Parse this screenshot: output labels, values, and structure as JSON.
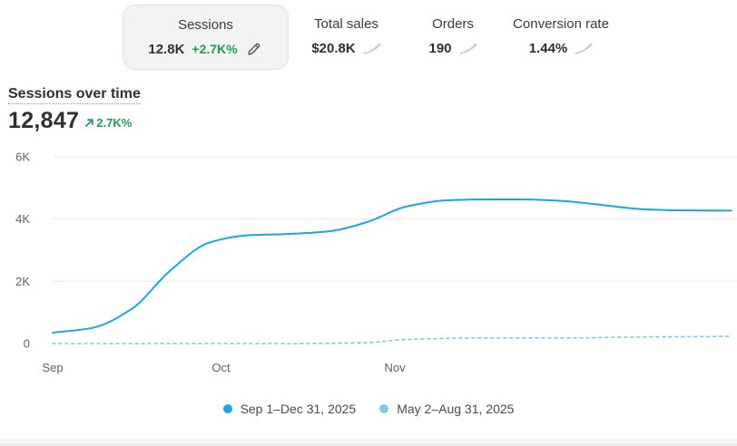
{
  "metrics": [
    {
      "title": "Sessions",
      "value": "12.8K",
      "delta": "+2.7K%",
      "selected": true,
      "icon": "pencil-icon"
    },
    {
      "title": "Total sales",
      "value": "$20.8K",
      "icon": "sparkline-icon"
    },
    {
      "title": "Orders",
      "value": "190",
      "icon": "sparkline-icon"
    },
    {
      "title": "Conversion rate",
      "value": "1.44%",
      "icon": "sparkline-icon"
    }
  ],
  "chart_header": {
    "title": "Sessions over time",
    "total": "12,847",
    "delta": "2.7K%",
    "delta_icon": "arrow-up-right-icon"
  },
  "legend": [
    {
      "label": "Sep 1–Dec 31, 2025",
      "color": "#1aa7e0",
      "style": "solid"
    },
    {
      "label": "May 2–Aug 31, 2025",
      "color": "#7fc8ea",
      "style": "dotted"
    }
  ],
  "colors": {
    "primary_series": "#1aa7e0",
    "comparison_series": "#7fc8ea",
    "positive": "#1e9b57",
    "gridline": "#ebebeb"
  },
  "chart_data": {
    "type": "line",
    "title": "Sessions over time",
    "xlabel": "",
    "ylabel": "",
    "ylim": [
      0,
      6000
    ],
    "y_ticks": [
      0,
      2000,
      4000,
      6000
    ],
    "y_tick_labels": [
      "0",
      "2K",
      "4K",
      "6K"
    ],
    "x_range": [
      "2025-09-01",
      "2025-12-31"
    ],
    "x_ticks": [
      "2025-09-01",
      "2025-10-01",
      "2025-11-01"
    ],
    "x_tick_labels": [
      "Sep",
      "Oct",
      "Nov"
    ],
    "grid": true,
    "legend_position": "bottom-center",
    "series": [
      {
        "name": "Sep 1–Dec 31, 2025",
        "style": "solid",
        "x": [
          "2025-09-01",
          "2025-09-08",
          "2025-09-15",
          "2025-09-22",
          "2025-09-29",
          "2025-10-06",
          "2025-10-13",
          "2025-10-20",
          "2025-10-27",
          "2025-11-03",
          "2025-11-10",
          "2025-11-17",
          "2025-11-24",
          "2025-12-01",
          "2025-12-08",
          "2025-12-15",
          "2025-12-22",
          "2025-12-31"
        ],
        "values": [
          350,
          500,
          1100,
          2350,
          3250,
          3480,
          3520,
          3600,
          3900,
          4400,
          4600,
          4630,
          4630,
          4580,
          4450,
          4320,
          4280,
          4270
        ]
      },
      {
        "name": "May 2–Aug 31, 2025",
        "style": "dotted",
        "x": [
          "2025-09-01",
          "2025-09-15",
          "2025-09-29",
          "2025-10-13",
          "2025-10-27",
          "2025-11-03",
          "2025-11-17",
          "2025-12-01",
          "2025-12-15",
          "2025-12-31"
        ],
        "values": [
          0,
          0,
          0,
          0,
          30,
          130,
          180,
          180,
          210,
          230
        ]
      }
    ]
  }
}
